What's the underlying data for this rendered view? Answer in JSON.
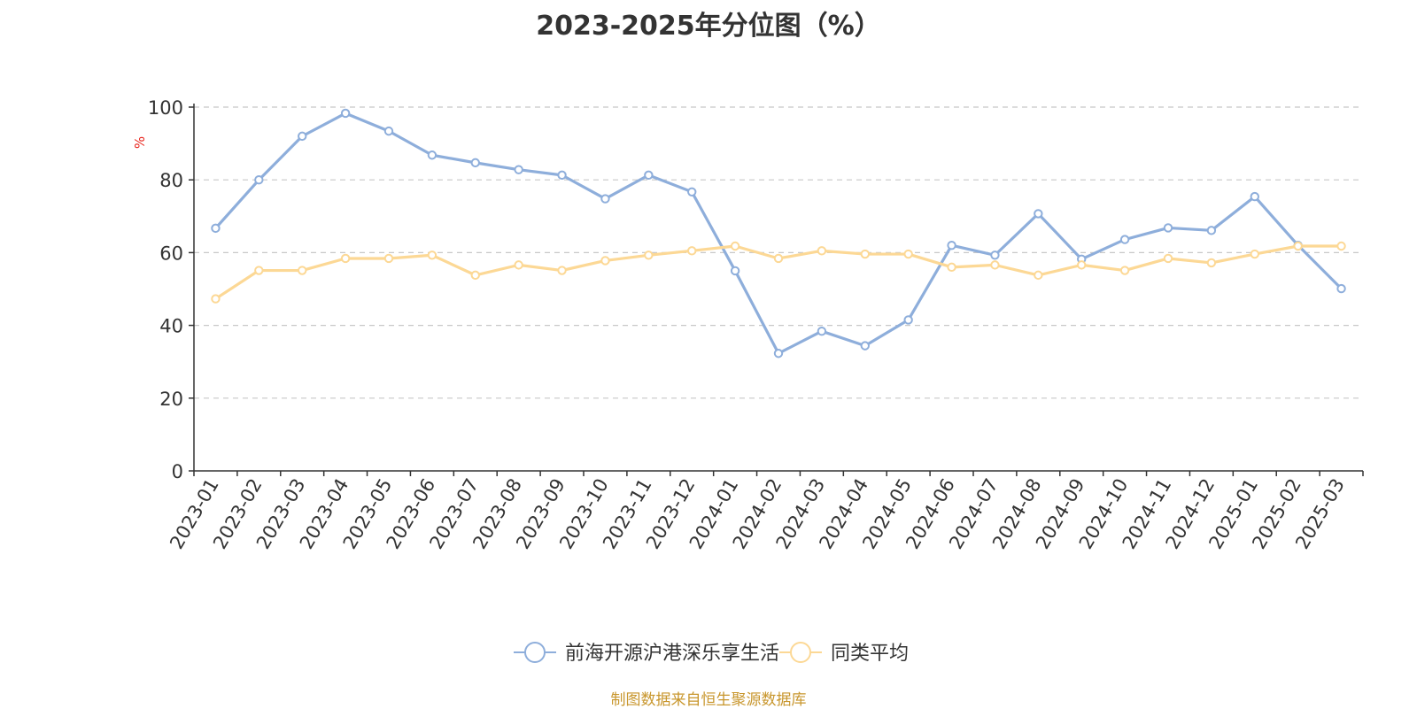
{
  "chart_data": {
    "type": "line",
    "title": "2023-2025年分位图（%）",
    "ylabel": "%",
    "ylim": [
      0,
      100
    ],
    "yticks": [
      0,
      20,
      40,
      60,
      80,
      100
    ],
    "grid": "horizontal dashed",
    "legend_position": "bottom-center",
    "categories": [
      "2023-01",
      "2023-02",
      "2023-03",
      "2023-04",
      "2023-05",
      "2023-06",
      "2023-07",
      "2023-08",
      "2023-09",
      "2023-10",
      "2023-11",
      "2023-12",
      "2024-01",
      "2024-02",
      "2024-03",
      "2024-04",
      "2024-05",
      "2024-06",
      "2024-07",
      "2024-08",
      "2024-09",
      "2024-10",
      "2024-11",
      "2024-12",
      "2025-01",
      "2025-02",
      "2025-03"
    ],
    "series": [
      {
        "name": "前海开源沪港深乐享生活",
        "color": "#8eaedb",
        "values": [
          66.7,
          80.0,
          92.0,
          98.3,
          93.4,
          86.8,
          84.7,
          82.8,
          81.3,
          74.8,
          81.3,
          76.7,
          55.0,
          32.3,
          38.4,
          34.4,
          41.5,
          62.0,
          59.3,
          70.7,
          58.2,
          63.6,
          66.8,
          66.1,
          75.4,
          62.0,
          50.1
        ]
      },
      {
        "name": "同类平均",
        "color": "#fcd895",
        "values": [
          47.3,
          55.1,
          55.1,
          58.4,
          58.4,
          59.3,
          53.8,
          56.6,
          55.1,
          57.8,
          59.3,
          60.5,
          61.8,
          58.4,
          60.5,
          59.6,
          59.6,
          56.0,
          56.6,
          53.8,
          56.6,
          55.1,
          58.4,
          57.2,
          59.6,
          61.8,
          61.8
        ]
      }
    ]
  },
  "footer": "制图数据来自恒生聚源数据库"
}
